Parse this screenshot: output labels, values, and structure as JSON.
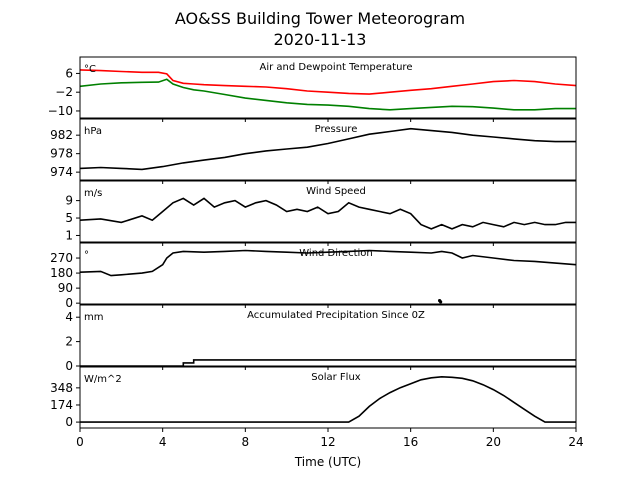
{
  "figure": {
    "title_line1": "AO&SS Building Tower Meteorogram",
    "title_line2": "2020-11-13"
  },
  "chart_data": [
    {
      "type": "line",
      "title": "Air and Dewpoint Temperature",
      "unit": "°C",
      "ylim": [
        -13,
        13
      ],
      "yticks": [
        6,
        -2,
        -10
      ],
      "ytick_labels": [
        "6",
        "−2",
        "−10"
      ],
      "xlim": [
        0,
        24
      ],
      "series": [
        {
          "color": "#ff0000",
          "x": [
            0,
            1,
            2,
            3,
            3.8,
            4.2,
            4.5,
            5,
            5.5,
            6,
            7,
            8,
            9,
            10,
            11,
            12,
            13,
            14,
            15,
            16,
            17,
            18,
            19,
            20,
            21,
            22,
            23,
            24
          ],
          "y": [
            7.5,
            7.2,
            6.8,
            6.5,
            6.5,
            5.8,
            3.0,
            1.8,
            1.5,
            1.2,
            0.8,
            0.5,
            0.2,
            -0.5,
            -1.5,
            -2.0,
            -2.5,
            -2.8,
            -2.0,
            -1.2,
            -0.5,
            0.5,
            1.5,
            2.5,
            3.0,
            2.5,
            1.5,
            0.8
          ]
        },
        {
          "color": "#008000",
          "x": [
            0,
            1,
            2,
            3,
            3.8,
            4.2,
            4.5,
            5,
            5.5,
            6,
            7,
            8,
            9,
            10,
            11,
            12,
            13,
            14,
            15,
            16,
            17,
            18,
            19,
            20,
            21,
            22,
            23,
            24
          ],
          "y": [
            0.5,
            1.5,
            2.0,
            2.2,
            2.3,
            3.5,
            1.5,
            0.0,
            -1.0,
            -1.5,
            -3.0,
            -4.5,
            -5.5,
            -6.5,
            -7.2,
            -7.5,
            -8.0,
            -9.0,
            -9.5,
            -9.0,
            -8.5,
            -8.0,
            -8.2,
            -8.8,
            -9.5,
            -9.5,
            -9.0,
            -9.0
          ]
        }
      ]
    },
    {
      "type": "line",
      "title": "Pressure",
      "unit": "hPa",
      "ylim": [
        972.3,
        985.5
      ],
      "yticks": [
        982,
        978,
        974
      ],
      "ytick_labels": [
        "982",
        "978",
        "974"
      ],
      "xlim": [
        0,
        24
      ],
      "series": [
        {
          "color": "#000000",
          "x": [
            0,
            1,
            2,
            3,
            4,
            5,
            6,
            7,
            8,
            9,
            10,
            11,
            12,
            13,
            14,
            15,
            16,
            17,
            18,
            19,
            20,
            21,
            22,
            23,
            24
          ],
          "y": [
            974.8,
            975.0,
            974.8,
            974.6,
            975.2,
            976.0,
            976.6,
            977.2,
            978.0,
            978.6,
            979.0,
            979.4,
            980.2,
            981.2,
            982.2,
            982.8,
            983.4,
            983.0,
            982.6,
            982.0,
            981.6,
            981.2,
            980.8,
            980.6,
            980.6
          ]
        }
      ]
    },
    {
      "type": "line",
      "title": "Wind Speed",
      "unit": "m/s",
      "ylim": [
        -0.5,
        13.5
      ],
      "yticks": [
        9,
        5,
        1
      ],
      "ytick_labels": [
        "9",
        "5",
        "1"
      ],
      "xlim": [
        0,
        24
      ],
      "series": [
        {
          "color": "#000000",
          "x": [
            0,
            1,
            2,
            3,
            3.5,
            4,
            4.5,
            5,
            5.5,
            6,
            6.5,
            7,
            7.5,
            8,
            8.5,
            9,
            9.5,
            10,
            10.5,
            11,
            11.5,
            12,
            12.5,
            13,
            13.5,
            14,
            14.5,
            15,
            15.5,
            16,
            16.5,
            17,
            17.5,
            18,
            18.5,
            19,
            19.5,
            20,
            20.5,
            21,
            21.5,
            22,
            22.5,
            23,
            23.5,
            24
          ],
          "y": [
            4.5,
            4.8,
            4.0,
            5.5,
            4.5,
            6.5,
            8.5,
            9.5,
            8.0,
            9.5,
            7.5,
            8.5,
            9.0,
            7.5,
            8.5,
            9.0,
            8.0,
            6.5,
            7.0,
            6.5,
            7.5,
            6.0,
            6.5,
            8.5,
            7.5,
            7.0,
            6.5,
            6.0,
            7.0,
            6.0,
            3.5,
            2.5,
            3.5,
            2.5,
            3.5,
            3.0,
            4.0,
            3.5,
            3.0,
            4.0,
            3.5,
            4.0,
            3.5,
            3.5,
            4.0,
            4.0
          ]
        }
      ]
    },
    {
      "type": "line",
      "title": "Wind Direction",
      "unit": "°",
      "ylim": [
        -5,
        360
      ],
      "yticks": [
        270,
        180,
        90,
        0
      ],
      "ytick_labels": [
        "270",
        "180",
        "90",
        "0"
      ],
      "xlim": [
        0,
        24
      ],
      "series": [
        {
          "color": "#000000",
          "x": [
            0,
            1,
            1.5,
            2,
            3,
            3.5,
            4,
            4.2,
            4.5,
            5,
            6,
            7,
            8,
            9,
            10,
            11,
            12,
            13,
            14,
            15,
            16,
            17,
            17.5,
            18,
            18.5,
            19,
            20,
            21,
            22,
            23,
            24
          ],
          "y": [
            185,
            190,
            165,
            170,
            180,
            190,
            230,
            270,
            300,
            310,
            305,
            310,
            315,
            310,
            305,
            300,
            305,
            310,
            315,
            310,
            305,
            300,
            310,
            300,
            270,
            285,
            270,
            255,
            250,
            240,
            230
          ]
        }
      ],
      "points": [
        {
          "x": 17.4,
          "y": 15
        },
        {
          "x": 17.45,
          "y": 8
        }
      ]
    },
    {
      "type": "line",
      "title": "Accumulated Precipitation Since 0Z",
      "unit": "mm",
      "ylim": [
        0,
        5
      ],
      "yticks": [
        4,
        2,
        0
      ],
      "ytick_labels": [
        "4",
        "2",
        "0"
      ],
      "xlim": [
        0,
        24
      ],
      "series": [
        {
          "color": "#000000",
          "x": [
            0,
            5.0,
            5.0,
            5.5,
            5.5,
            24
          ],
          "y": [
            0,
            0,
            0.25,
            0.25,
            0.5,
            0.5
          ]
        }
      ]
    },
    {
      "type": "line",
      "title": "Solar Flux",
      "unit": "W/m^2",
      "ylim": [
        -60,
        560
      ],
      "yticks": [
        348,
        174,
        0
      ],
      "ytick_labels": [
        "348",
        "174",
        "0"
      ],
      "xlim": [
        0,
        24
      ],
      "xticks": [
        0,
        4,
        8,
        12,
        16,
        20,
        24
      ],
      "xlabel": "Time (UTC)",
      "series": [
        {
          "color": "#000000",
          "x": [
            0,
            13.0,
            13.5,
            14,
            14.5,
            15,
            15.5,
            16,
            16.5,
            17,
            17.5,
            18,
            18.5,
            19,
            19.5,
            20,
            20.5,
            21,
            21.5,
            22,
            22.5,
            24
          ],
          "y": [
            0,
            0,
            60,
            160,
            240,
            300,
            350,
            390,
            430,
            450,
            460,
            455,
            445,
            420,
            380,
            330,
            270,
            200,
            130,
            60,
            0,
            0
          ]
        }
      ]
    }
  ]
}
